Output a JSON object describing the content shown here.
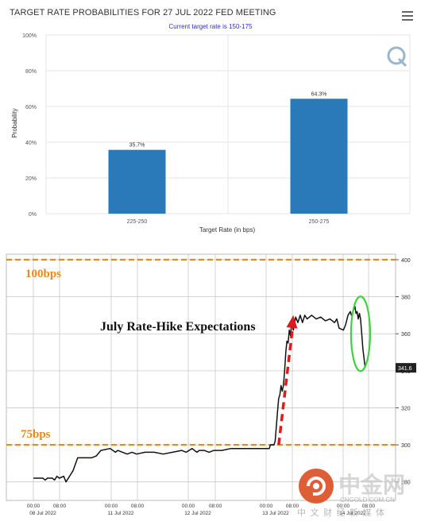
{
  "header": {
    "title": "TARGET RATE PROBABILITIES FOR 27 JUL 2022 FED MEETING",
    "subtitle": "Current target rate is 150-175"
  },
  "menu": {
    "icon": "hamburger-menu-icon"
  },
  "chart_data": [
    {
      "type": "bar",
      "categories": [
        "225-250",
        "250-275"
      ],
      "values": [
        35.7,
        64.3
      ],
      "data_labels": [
        "35.7%",
        "64.3%"
      ],
      "ylabel": "Probability",
      "xlabel": "Target Rate (in bps)",
      "ylim": [
        0,
        100
      ],
      "yticks": [
        "0%",
        "20%",
        "40%",
        "60%",
        "80%",
        "100%"
      ],
      "grid": true,
      "bar_color": "#2a7ab9"
    },
    {
      "type": "line",
      "title": "July Rate-Hike Expectations",
      "ylim": [
        270,
        403
      ],
      "yticks": [
        280,
        300,
        320,
        340,
        360,
        380,
        400
      ],
      "last_value_label": "341.6",
      "reference_lines": [
        {
          "label": "100bps",
          "y": 400,
          "color": "#e8891a"
        },
        {
          "label": "75bps",
          "y": 300,
          "color": "#e8891a"
        }
      ],
      "x_ticks": [
        {
          "time": "00:00",
          "date": "08 Jul 2022"
        },
        {
          "time": "08:00",
          "date": ""
        },
        {
          "time": "00:00",
          "date": "11 Jul 2022"
        },
        {
          "time": "08:00",
          "date": ""
        },
        {
          "time": "00:00",
          "date": "12 Jul 2022"
        },
        {
          "time": "08:00",
          "date": ""
        },
        {
          "time": "00:00",
          "date": "13 Jul 2022"
        },
        {
          "time": "08:00",
          "date": ""
        },
        {
          "time": "00:00",
          "date": "14 Jul 2022"
        },
        {
          "time": "08:00",
          "date": ""
        }
      ],
      "series": [
        {
          "values": [
            [
              0,
              282
            ],
            [
              4,
              282
            ],
            [
              5,
              281
            ],
            [
              6,
              282
            ],
            [
              8,
              282
            ],
            [
              9,
              281
            ],
            [
              10,
              283
            ],
            [
              11,
              282
            ],
            [
              12,
              283
            ],
            [
              12.5,
              280
            ],
            [
              13.5,
              284
            ],
            [
              14,
              286
            ],
            [
              15,
              293
            ],
            [
              18,
              293
            ],
            [
              19,
              294
            ],
            [
              20,
              297
            ],
            [
              22,
              298
            ],
            [
              24,
              296
            ],
            [
              25,
              297
            ],
            [
              27,
              296
            ],
            [
              29,
              295
            ],
            [
              31,
              296
            ],
            [
              33,
              295
            ],
            [
              35,
              296
            ],
            [
              37,
              296
            ],
            [
              39,
              295
            ],
            [
              41,
              296
            ],
            [
              43,
              297
            ],
            [
              44,
              296
            ],
            [
              46,
              298
            ],
            [
              47,
              297
            ],
            [
              48,
              296
            ],
            [
              49,
              297
            ],
            [
              51,
              297
            ],
            [
              53,
              296
            ],
            [
              55,
              297
            ],
            [
              57,
              297
            ],
            [
              59,
              298
            ],
            [
              61,
              298
            ],
            [
              63,
              298
            ],
            [
              65,
              298
            ],
            [
              67,
              298
            ],
            [
              68,
              298
            ],
            [
              68.5,
              300
            ],
            [
              70,
              300
            ],
            [
              70.5,
              302
            ],
            [
              71,
              310
            ],
            [
              71.5,
              318
            ],
            [
              72,
              325
            ],
            [
              72.5,
              327
            ],
            [
              73,
              332
            ],
            [
              73.5,
              329
            ],
            [
              74,
              332
            ],
            [
              74.5,
              340
            ],
            [
              75,
              350
            ],
            [
              75.5,
              356
            ],
            [
              76,
              355
            ],
            [
              76.5,
              362
            ],
            [
              77,
              359
            ],
            [
              77.5,
              366
            ],
            [
              78,
              362
            ],
            [
              78.5,
              369
            ],
            [
              79,
              366
            ],
            [
              79.5,
              370
            ],
            [
              80,
              366
            ],
            [
              80.5,
              370
            ],
            [
              81,
              368
            ],
            [
              82,
              370
            ],
            [
              83,
              368
            ],
            [
              84,
              369
            ],
            [
              85,
              367
            ],
            [
              86,
              368
            ],
            [
              87,
              366
            ],
            [
              87.5,
              368
            ],
            [
              88,
              363
            ],
            [
              89,
              362
            ],
            [
              90,
              365
            ],
            [
              91,
              370
            ],
            [
              92,
              372
            ],
            [
              92.5,
              370
            ],
            [
              93,
              371
            ],
            [
              94,
              375
            ],
            [
              94.5,
              371
            ],
            [
              95,
              372
            ],
            [
              95.5,
              368
            ],
            [
              96,
              371
            ],
            [
              96.5,
              368
            ],
            [
              97,
              360
            ],
            [
              97.5,
              352
            ],
            [
              98,
              347
            ],
            [
              98.5,
              341.6
            ]
          ],
          "color": "#111111"
        }
      ],
      "annotations": [
        {
          "type": "arrow",
          "from": [
            72,
            300
          ],
          "to": [
            78,
            370
          ],
          "color": "#dd1b1b",
          "dashed": true
        },
        {
          "type": "ellipse",
          "center": [
            96.5,
            360
          ],
          "color": "#3fd23f"
        }
      ]
    }
  ],
  "watermark": {
    "text_main": "中金网",
    "text_url": "CNGOLD.COM.CN",
    "text_sub": "中 文 财 经 新 媒 体"
  }
}
